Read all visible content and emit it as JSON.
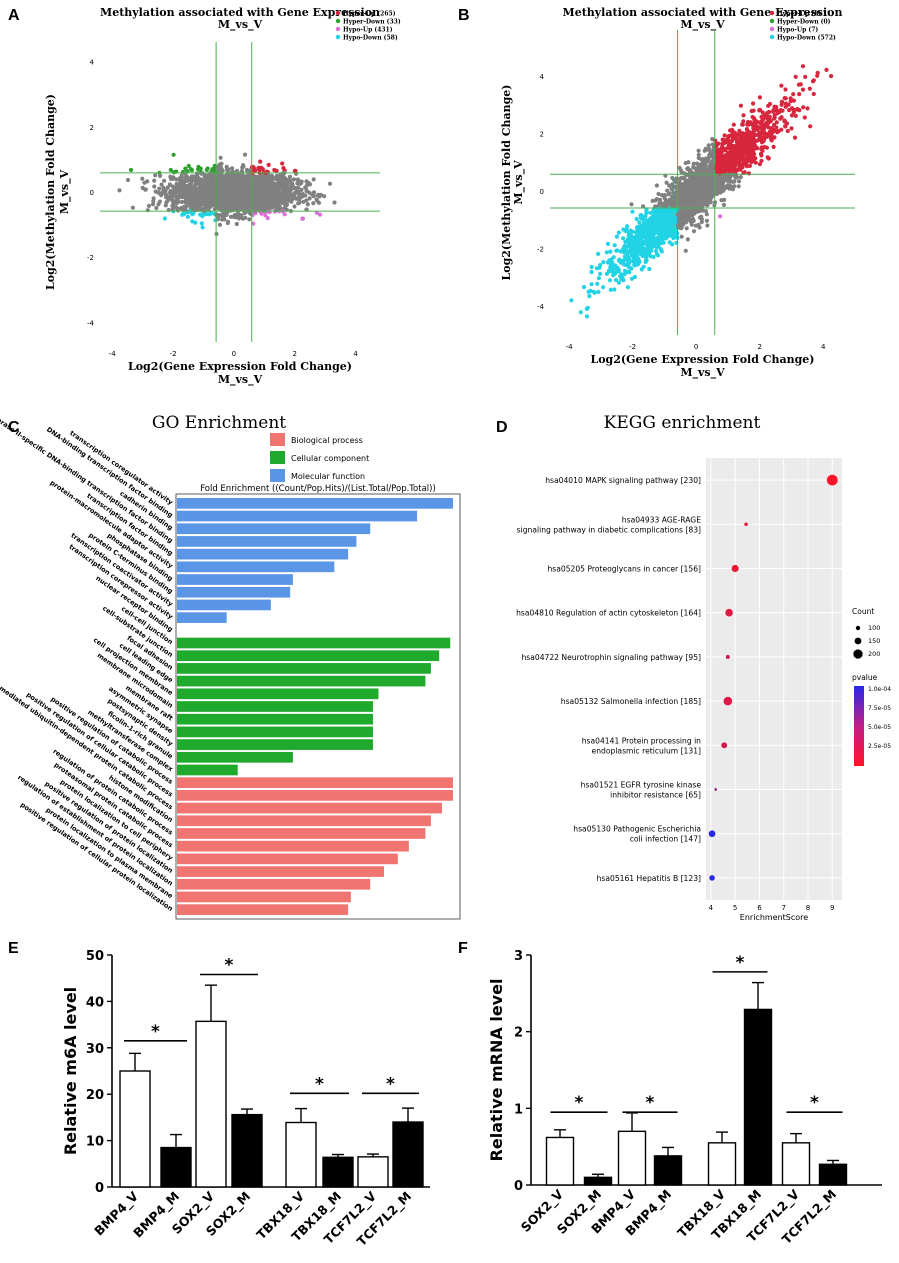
{
  "panels": {
    "A": {
      "letter": "A",
      "chart_data": {
        "type": "scatter",
        "title": "Methylation associated with Gene Expression",
        "subtitle": "M_vs_V",
        "xlabel": "Log2(Gene Expression Fold Change)",
        "xlabel2": "M_vs_V",
        "ylabel": "Log2(Methylation Fold Change)",
        "ylabel2": "M_vs_V",
        "xlim": [
          -4.4,
          4.8
        ],
        "ylim": [
          -4.6,
          4.6
        ],
        "xticks": [
          -4,
          -2,
          0,
          2,
          4
        ],
        "yticks": [
          -4,
          -2,
          0,
          2,
          4
        ],
        "thresholds": {
          "x": [
            -0.585,
            0.585
          ],
          "y": [
            -0.585,
            0.585
          ]
        },
        "legend_position": "top-right",
        "series": [
          {
            "name": "Hyper-Up (265)",
            "color": "#d7263d",
            "count": 265
          },
          {
            "name": "Hyper-Down (33)",
            "color": "#2ca02c",
            "count": 33
          },
          {
            "name": "Hypo-Up (431)",
            "color": "#da70d6",
            "count": 431
          },
          {
            "name": "Hypo-Down (58)",
            "color": "#22d3e6",
            "count": 58
          }
        ],
        "other_color": "#808080"
      }
    },
    "B": {
      "letter": "B",
      "chart_data": {
        "type": "scatter",
        "title": "Methylation associated with Gene Expression",
        "subtitle": "M_vs_V",
        "xlabel": "Log2(Gene Expression Fold Change)",
        "xlabel2": "M_vs_V",
        "ylabel": "Log2(Methylation Fold Change)",
        "ylabel2": "M_vs_V",
        "xlim": [
          -4.6,
          5.0
        ],
        "ylim": [
          -5.0,
          5.6
        ],
        "xticks": [
          -4,
          -2,
          0,
          2,
          4
        ],
        "yticks": [
          -4,
          -2,
          0,
          2,
          4
        ],
        "thresholds": {
          "x": [
            -0.585,
            0.585
          ],
          "y": [
            -0.585,
            0.585
          ]
        },
        "legend_position": "top-right",
        "series": [
          {
            "name": "Hyper-Up (8611)",
            "color": "#d7263d",
            "count": 8611
          },
          {
            "name": "Hyper-Down (0)",
            "color": "#2ca02c",
            "count": 0
          },
          {
            "name": "Hypo-Up (7)",
            "color": "#da70d6",
            "count": 7
          },
          {
            "name": "Hypo-Down (572)",
            "color": "#22d3e6",
            "count": 572
          }
        ],
        "other_color": "#808080"
      }
    },
    "C": {
      "letter": "C",
      "chart_data": {
        "type": "bar",
        "orientation": "horizontal",
        "title": "GO Enrichment",
        "axis_title": "Fold Enrichment ((Count/Pop.Hits)/(List.Total/Pop.Total))",
        "legend": [
          {
            "name": "Biological process",
            "color": "#f07470"
          },
          {
            "name": "Cellular component",
            "color": "#1faa2e"
          },
          {
            "name": "Molecular function",
            "color": "#5a95e6"
          }
        ],
        "categories": [
          "transcription coregulator activity",
          "DNA-binding transcription factor binding",
          "cadherin binding",
          "RNA polymerase II-specific DNA-binding transcription factor binding",
          "transcription factor binding",
          "protein-macromolecule adaptor activity",
          "phosphatase binding",
          "protein C-terminus binding",
          "transcription coactivator activity",
          "transcription corepressor activity",
          "nuclear receptor binding",
          "cell-cell junction",
          "cell-substrate junction",
          "focal adhesion",
          "cell leading edge",
          "cell projection membrane",
          "membrane microdomain",
          "membrane raft",
          "asymmetric synapse",
          "postsynaptic density",
          "ficolin-1-rich granule",
          "methyltransferase complex",
          "positive regulation of catabolic process",
          "positive regulation of cellular catabolic process",
          "proteasome-mediated ubiquitin-dependent protein catabolic process",
          "histone modification",
          "regulation of protein catabolic process",
          "proteasomal protein catabolic process",
          "protein localization to cell periphery",
          "positive regulation of protein localization",
          "regulation of establishment of protein localization",
          "protein localization to plasma membrane",
          "positive regulation of cellular protein localization"
        ],
        "groups": [
          "Molecular function",
          "Molecular function",
          "Molecular function",
          "Molecular function",
          "Molecular function",
          "Molecular function",
          "Molecular function",
          "Molecular function",
          "Molecular function",
          "Molecular function",
          "Molecular function",
          "Cellular component",
          "Cellular component",
          "Cellular component",
          "Cellular component",
          "Cellular component",
          "Cellular component",
          "Cellular component",
          "Cellular component",
          "Cellular component",
          "Cellular component",
          "Cellular component",
          "Biological process",
          "Biological process",
          "Biological process",
          "Biological process",
          "Biological process",
          "Biological process",
          "Biological process",
          "Biological process",
          "Biological process",
          "Biological process",
          "Biological process"
        ],
        "values": [
          100,
          87,
          70,
          65,
          62,
          57,
          42,
          41,
          34,
          18,
          0,
          99,
          95,
          92,
          90,
          73,
          71,
          71,
          71,
          71,
          42,
          22,
          100,
          100,
          96,
          92,
          90,
          84,
          80,
          75,
          70,
          63,
          62
        ],
        "xlim": [
          0,
          100
        ]
      }
    },
    "D": {
      "letter": "D",
      "chart_data": {
        "type": "scatter",
        "title": "KEGG enrichment",
        "xlabel": "EnrichmentScore",
        "xlim": [
          3.8,
          9.4
        ],
        "xticks": [
          4,
          5,
          6,
          7,
          8,
          9
        ],
        "categories": [
          "hsa04010 MAPK signaling pathway [230]",
          "hsa04933 AGE-RAGE|signaling pathway in diabetic complications [83]",
          "hsa05205 Proteoglycans in cancer [156]",
          "hsa04810 Regulation of actin cytoskeleton [164]",
          "hsa04722 Neurotrophin signaling pathway [95]",
          "hsa05132 Salmonella infection [185]",
          "hsa04141 Protein processing in|endoplasmic reticulum [131]",
          "hsa01521 EGFR tyrosine kinase|inhibitor resistance [65]",
          "hsa05130 Pathogenic Escherichia|coli infection [147]",
          "hsa05161 Hepatitis B [123]"
        ],
        "x": [
          9.0,
          5.45,
          5.0,
          4.75,
          4.7,
          4.7,
          4.55,
          4.2,
          4.05,
          4.05
        ],
        "count": [
          230,
          83,
          156,
          164,
          95,
          185,
          131,
          65,
          147,
          123
        ],
        "pvalue": [
          1e-06,
          1e-05,
          8e-06,
          1.2e-05,
          2e-05,
          1.5e-05,
          2e-05,
          5e-05,
          0.0001,
          0.0001
        ],
        "size_legend_title": "Count",
        "size_legend": [
          100,
          150,
          200
        ],
        "color_legend_title": "pvalue",
        "color_legend_labels": [
          "1.0e-04",
          "7.5e-05",
          "5.0e-05",
          "2.5e-05"
        ]
      }
    },
    "E": {
      "letter": "E",
      "chart_data": {
        "type": "bar",
        "ylabel": "Relative m6A level",
        "ylim": [
          0,
          50
        ],
        "yticks": [
          0,
          10,
          20,
          30,
          40,
          50
        ],
        "categories": [
          "BMP4_V",
          "BMP4_M",
          "SOX2_V",
          "SOX2_M",
          "TBX18_V",
          "TBX18_M",
          "TCF7L2_V",
          "TCF7L2_M"
        ],
        "values": [
          25,
          8.5,
          35.7,
          15.6,
          13.9,
          6.4,
          6.5,
          14
        ],
        "errors": [
          3.8,
          2.8,
          7.8,
          1.2,
          3.0,
          0.6,
          0.6,
          3.0
        ],
        "fill": [
          "white",
          "black",
          "white",
          "black",
          "white",
          "black",
          "white",
          "black"
        ],
        "significance": [
          {
            "pair": [
              0,
              1
            ],
            "label": "*",
            "y": 31.5
          },
          {
            "pair": [
              2,
              3
            ],
            "label": "*",
            "y": 45.8
          },
          {
            "pair": [
              4,
              5
            ],
            "label": "*",
            "y": 20.2
          },
          {
            "pair": [
              6,
              7
            ],
            "label": "*",
            "y": 20.2
          }
        ]
      }
    },
    "F": {
      "letter": "F",
      "chart_data": {
        "type": "bar",
        "ylabel": "Relative mRNA level",
        "ylim": [
          0,
          3
        ],
        "yticks": [
          0,
          1,
          2,
          3
        ],
        "categories": [
          "SOX2_V",
          "SOX2_M",
          "BMP4_V",
          "BMP4_M",
          "TBX18_V",
          "TBX18_M",
          "TCF7L2_V",
          "TCF7L2_M"
        ],
        "values": [
          0.62,
          0.1,
          0.7,
          0.38,
          0.55,
          2.29,
          0.55,
          0.27
        ],
        "errors": [
          0.1,
          0.04,
          0.24,
          0.11,
          0.14,
          0.35,
          0.12,
          0.05
        ],
        "fill": [
          "white",
          "black",
          "white",
          "black",
          "white",
          "black",
          "white",
          "black"
        ],
        "significance": [
          {
            "pair": [
              0,
              1
            ],
            "label": "*",
            "y": 0.95
          },
          {
            "pair": [
              2,
              3
            ],
            "label": "*",
            "y": 0.95
          },
          {
            "pair": [
              4,
              5
            ],
            "label": "*",
            "y": 2.78
          },
          {
            "pair": [
              6,
              7
            ],
            "label": "*",
            "y": 0.95
          }
        ]
      }
    }
  }
}
